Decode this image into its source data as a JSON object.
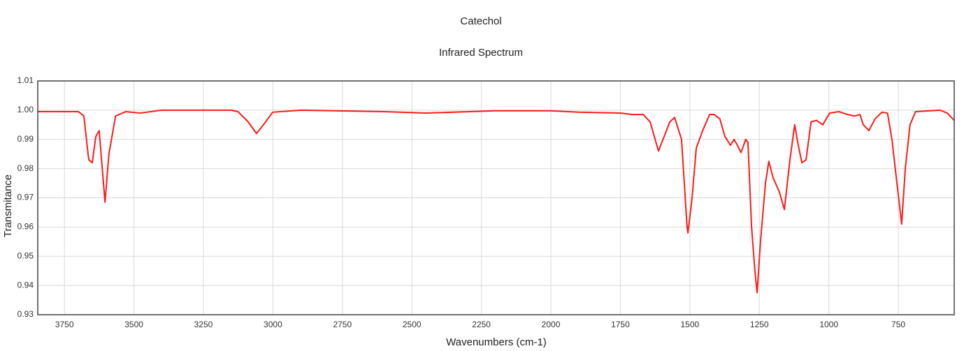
{
  "chart_data": {
    "type": "line",
    "title": "Catechol",
    "subtitle": "Infrared Spectrum",
    "x_label": "Wavenumbers (cm-1)",
    "y_label": "Transmitance",
    "xlim": [
      3846,
      549
    ],
    "ylim": [
      0.93,
      1.01
    ],
    "xticks": [
      3750,
      3500,
      3250,
      3000,
      2750,
      2500,
      2250,
      2000,
      1750,
      1500,
      1250,
      1000,
      750
    ],
    "yticks": [
      0.93,
      0.94,
      0.95,
      0.96,
      0.97,
      0.98,
      0.99,
      {
        "value": 1,
        "label": "1.00"
      },
      1.01
    ],
    "grid": true,
    "series": [
      {
        "name": "Transmitance",
        "color": "#ff1a1a",
        "x": [
          3846,
          3700,
          3680,
          3665,
          3662,
          3650,
          3637,
          3625,
          3604,
          3590,
          3566,
          3529,
          3478,
          3400,
          3150,
          3126,
          3089,
          3059,
          3026,
          3001,
          2900,
          2600,
          2450,
          2200,
          2000,
          1900,
          1751,
          1706,
          1668,
          1643,
          1613,
          1572,
          1555,
          1530,
          1510,
          1507,
          1492,
          1477,
          1454,
          1429,
          1412,
          1392,
          1374,
          1354,
          1341,
          1329,
          1316,
          1299,
          1291,
          1278,
          1266,
          1258,
          1246,
          1228,
          1216,
          1201,
          1178,
          1160,
          1140,
          1123,
          1110,
          1097,
          1082,
          1064,
          1044,
          1022,
          997,
          964,
          932,
          909,
          888,
          876,
          856,
          834,
          809,
          789,
          773,
          755,
          738,
          725,
          708,
          688,
          600,
          574,
          549
        ],
        "values": [
          0.9995,
          0.9995,
          0.998,
          0.985,
          0.983,
          0.982,
          0.991,
          0.993,
          0.9685,
          0.985,
          0.998,
          0.9995,
          0.999,
          1.0,
          1.0,
          0.9995,
          0.996,
          0.992,
          0.996,
          0.9993,
          1.0,
          0.9995,
          0.999,
          0.9998,
          0.9998,
          0.9993,
          0.999,
          0.9985,
          0.9985,
          0.996,
          0.986,
          0.996,
          0.9975,
          0.99,
          0.96,
          0.958,
          0.97,
          0.987,
          0.993,
          0.9985,
          0.9985,
          0.997,
          0.991,
          0.988,
          0.99,
          0.988,
          0.9855,
          0.99,
          0.989,
          0.96,
          0.945,
          0.9375,
          0.955,
          0.975,
          0.9825,
          0.977,
          0.972,
          0.966,
          0.983,
          0.995,
          0.988,
          0.982,
          0.983,
          0.996,
          0.9965,
          0.995,
          0.999,
          0.9995,
          0.9985,
          0.998,
          0.9985,
          0.995,
          0.993,
          0.997,
          0.9993,
          0.999,
          0.99,
          0.975,
          0.961,
          0.98,
          0.995,
          0.9995,
          1.0,
          0.999,
          0.9965
        ]
      }
    ]
  }
}
